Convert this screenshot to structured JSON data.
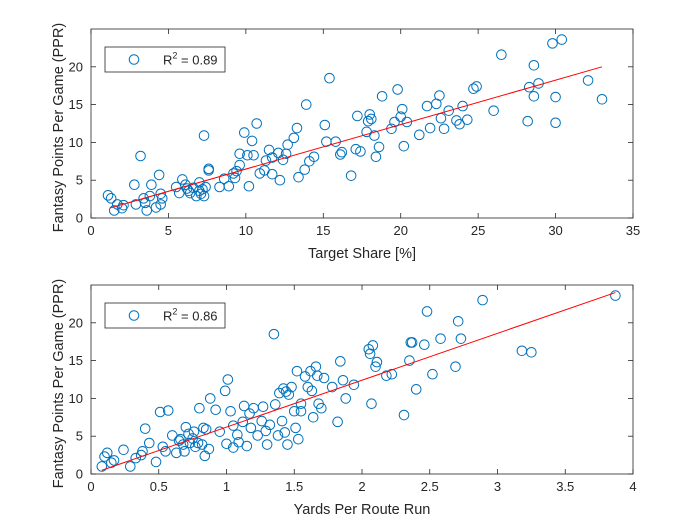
{
  "chart_data": [
    {
      "type": "scatter",
      "xlabel": "Target Share [%]",
      "ylabel": "Fantasy Points Per Game (PPR)",
      "xlim": [
        0,
        35
      ],
      "ylim": [
        0,
        25
      ],
      "xticks": [
        "0",
        "5",
        "10",
        "15",
        "20",
        "25",
        "30",
        "35"
      ],
      "yticks": [
        "0",
        "5",
        "10",
        "15",
        "20"
      ],
      "legend": {
        "placement": "top-left",
        "label_main": "R",
        "label_sup": "2",
        "label_rest": " = 0.89"
      },
      "marker_color": "#0072BD",
      "fit_color": "#FF0000",
      "fit": {
        "x": [
          1.2,
          33.0
        ],
        "y": [
          1.3,
          20.0
        ]
      },
      "points": [
        [
          1.1,
          3.0
        ],
        [
          1.3,
          2.6
        ],
        [
          1.5,
          1.0
        ],
        [
          1.7,
          1.8
        ],
        [
          2.0,
          1.3
        ],
        [
          2.1,
          1.7
        ],
        [
          2.8,
          4.4
        ],
        [
          2.9,
          1.8
        ],
        [
          3.2,
          8.2
        ],
        [
          3.4,
          2.6
        ],
        [
          3.5,
          2.0
        ],
        [
          3.6,
          1.0
        ],
        [
          3.8,
          2.9
        ],
        [
          3.9,
          4.4
        ],
        [
          4.2,
          1.4
        ],
        [
          4.4,
          5.7
        ],
        [
          4.5,
          1.8
        ],
        [
          4.5,
          3.2
        ],
        [
          4.6,
          2.6
        ],
        [
          5.5,
          4.1
        ],
        [
          5.7,
          3.3
        ],
        [
          5.9,
          5.1
        ],
        [
          6.1,
          4.4
        ],
        [
          6.2,
          3.9
        ],
        [
          6.3,
          3.6
        ],
        [
          6.4,
          3.3
        ],
        [
          6.6,
          4.0
        ],
        [
          6.8,
          2.9
        ],
        [
          7.0,
          3.6
        ],
        [
          7.0,
          4.7
        ],
        [
          7.1,
          3.2
        ],
        [
          7.2,
          3.8
        ],
        [
          7.3,
          2.9
        ],
        [
          7.3,
          10.9
        ],
        [
          7.4,
          4.1
        ],
        [
          7.6,
          6.5
        ],
        [
          7.6,
          6.3
        ],
        [
          8.3,
          4.1
        ],
        [
          8.6,
          5.2
        ],
        [
          8.9,
          4.2
        ],
        [
          9.2,
          5.9
        ],
        [
          9.3,
          5.3
        ],
        [
          9.4,
          6.2
        ],
        [
          9.6,
          8.5
        ],
        [
          9.6,
          7.0
        ],
        [
          9.9,
          11.3
        ],
        [
          10.1,
          8.3
        ],
        [
          10.2,
          4.2
        ],
        [
          10.4,
          10.2
        ],
        [
          10.5,
          8.3
        ],
        [
          10.7,
          12.5
        ],
        [
          10.9,
          5.9
        ],
        [
          11.2,
          6.3
        ],
        [
          11.3,
          7.6
        ],
        [
          11.5,
          9.0
        ],
        [
          11.7,
          8.0
        ],
        [
          11.7,
          5.8
        ],
        [
          12.1,
          8.6
        ],
        [
          12.2,
          5.0
        ],
        [
          12.4,
          7.7
        ],
        [
          12.6,
          8.5
        ],
        [
          12.7,
          9.7
        ],
        [
          13.1,
          10.6
        ],
        [
          13.3,
          11.9
        ],
        [
          13.4,
          5.4
        ],
        [
          13.8,
          6.4
        ],
        [
          13.9,
          15.0
        ],
        [
          14.1,
          7.5
        ],
        [
          14.4,
          8.1
        ],
        [
          15.1,
          12.3
        ],
        [
          15.2,
          10.1
        ],
        [
          15.4,
          18.5
        ],
        [
          15.8,
          10.1
        ],
        [
          16.1,
          8.4
        ],
        [
          16.2,
          8.7
        ],
        [
          16.8,
          5.6
        ],
        [
          17.1,
          9.1
        ],
        [
          17.2,
          13.5
        ],
        [
          17.4,
          8.8
        ],
        [
          17.8,
          11.4
        ],
        [
          17.9,
          12.8
        ],
        [
          18.0,
          13.7
        ],
        [
          18.1,
          13.1
        ],
        [
          18.3,
          10.9
        ],
        [
          18.4,
          8.1
        ],
        [
          18.6,
          9.4
        ],
        [
          18.8,
          16.1
        ],
        [
          19.4,
          11.8
        ],
        [
          19.6,
          12.7
        ],
        [
          19.8,
          17.0
        ],
        [
          20.0,
          13.4
        ],
        [
          20.1,
          14.4
        ],
        [
          20.2,
          9.5
        ],
        [
          20.4,
          12.7
        ],
        [
          21.2,
          11.0
        ],
        [
          21.7,
          14.8
        ],
        [
          21.9,
          11.9
        ],
        [
          22.3,
          15.1
        ],
        [
          22.5,
          16.2
        ],
        [
          22.6,
          13.2
        ],
        [
          22.8,
          11.8
        ],
        [
          23.1,
          14.2
        ],
        [
          23.6,
          12.9
        ],
        [
          23.8,
          12.4
        ],
        [
          24.0,
          14.8
        ],
        [
          24.3,
          13.0
        ],
        [
          24.7,
          17.1
        ],
        [
          24.9,
          17.4
        ],
        [
          26.0,
          14.2
        ],
        [
          26.5,
          21.6
        ],
        [
          28.2,
          12.8
        ],
        [
          28.3,
          17.3
        ],
        [
          28.6,
          16.1
        ],
        [
          28.6,
          20.2
        ],
        [
          28.9,
          17.8
        ],
        [
          29.8,
          23.1
        ],
        [
          30.0,
          12.6
        ],
        [
          30.0,
          16.0
        ],
        [
          30.4,
          23.6
        ],
        [
          32.1,
          18.2
        ],
        [
          33.0,
          15.7
        ]
      ]
    },
    {
      "type": "scatter",
      "xlabel": "Yards Per Route Run",
      "ylabel": "Fantasy Points Per Game (PPR)",
      "xlim": [
        0,
        4
      ],
      "ylim": [
        0,
        25
      ],
      "xticks": [
        "0",
        "0.5",
        "1",
        "1.5",
        "2",
        "2.5",
        "3",
        "3.5",
        "4"
      ],
      "yticks": [
        "0",
        "5",
        "10",
        "15",
        "20"
      ],
      "legend": {
        "placement": "top-left",
        "label_main": "R",
        "label_sup": "2",
        "label_rest": " = 0.86"
      },
      "marker_color": "#0072BD",
      "fit_color": "#FF0000",
      "fit": {
        "x": [
          0.08,
          3.87
        ],
        "y": [
          0.5,
          24.0
        ]
      },
      "points": [
        [
          0.08,
          1.0
        ],
        [
          0.1,
          2.3
        ],
        [
          0.12,
          2.8
        ],
        [
          0.15,
          1.5
        ],
        [
          0.17,
          1.8
        ],
        [
          0.24,
          3.2
        ],
        [
          0.29,
          1.0
        ],
        [
          0.33,
          2.1
        ],
        [
          0.37,
          2.5
        ],
        [
          0.38,
          3.0
        ],
        [
          0.4,
          6.0
        ],
        [
          0.43,
          4.1
        ],
        [
          0.48,
          1.6
        ],
        [
          0.51,
          8.2
        ],
        [
          0.53,
          3.6
        ],
        [
          0.55,
          3.0
        ],
        [
          0.57,
          8.4
        ],
        [
          0.6,
          5.1
        ],
        [
          0.63,
          2.8
        ],
        [
          0.65,
          4.4
        ],
        [
          0.66,
          4.6
        ],
        [
          0.68,
          3.9
        ],
        [
          0.69,
          3.0
        ],
        [
          0.7,
          6.2
        ],
        [
          0.72,
          5.3
        ],
        [
          0.73,
          4.1
        ],
        [
          0.75,
          4.7
        ],
        [
          0.76,
          5.6
        ],
        [
          0.77,
          3.6
        ],
        [
          0.79,
          4.1
        ],
        [
          0.8,
          8.7
        ],
        [
          0.82,
          3.9
        ],
        [
          0.83,
          6.1
        ],
        [
          0.84,
          2.4
        ],
        [
          0.85,
          5.9
        ],
        [
          0.87,
          3.3
        ],
        [
          0.88,
          10.0
        ],
        [
          0.92,
          8.5
        ],
        [
          0.95,
          5.6
        ],
        [
          0.99,
          11.0
        ],
        [
          1.0,
          4.0
        ],
        [
          1.01,
          12.5
        ],
        [
          1.03,
          8.3
        ],
        [
          1.05,
          6.4
        ],
        [
          1.05,
          3.5
        ],
        [
          1.08,
          5.2
        ],
        [
          1.09,
          4.2
        ],
        [
          1.12,
          6.9
        ],
        [
          1.13,
          9.0
        ],
        [
          1.15,
          3.7
        ],
        [
          1.17,
          8.0
        ],
        [
          1.18,
          6.1
        ],
        [
          1.2,
          8.7
        ],
        [
          1.23,
          5.1
        ],
        [
          1.26,
          7.0
        ],
        [
          1.27,
          8.9
        ],
        [
          1.29,
          5.7
        ],
        [
          1.3,
          3.9
        ],
        [
          1.32,
          6.5
        ],
        [
          1.35,
          18.5
        ],
        [
          1.36,
          9.2
        ],
        [
          1.38,
          5.1
        ],
        [
          1.39,
          10.7
        ],
        [
          1.41,
          7.0
        ],
        [
          1.42,
          11.3
        ],
        [
          1.43,
          5.5
        ],
        [
          1.44,
          10.9
        ],
        [
          1.45,
          3.9
        ],
        [
          1.46,
          10.5
        ],
        [
          1.48,
          11.5
        ],
        [
          1.5,
          8.3
        ],
        [
          1.51,
          6.1
        ],
        [
          1.52,
          13.6
        ],
        [
          1.53,
          4.6
        ],
        [
          1.55,
          9.3
        ],
        [
          1.55,
          8.3
        ],
        [
          1.58,
          12.9
        ],
        [
          1.6,
          11.5
        ],
        [
          1.62,
          13.6
        ],
        [
          1.63,
          11.0
        ],
        [
          1.64,
          7.5
        ],
        [
          1.66,
          14.2
        ],
        [
          1.67,
          13.0
        ],
        [
          1.68,
          9.3
        ],
        [
          1.7,
          8.7
        ],
        [
          1.72,
          12.7
        ],
        [
          1.78,
          11.5
        ],
        [
          1.82,
          6.9
        ],
        [
          1.84,
          14.9
        ],
        [
          1.86,
          12.4
        ],
        [
          1.88,
          10.0
        ],
        [
          1.94,
          11.8
        ],
        [
          2.05,
          16.5
        ],
        [
          2.06,
          15.9
        ],
        [
          2.07,
          9.3
        ],
        [
          2.08,
          17.0
        ],
        [
          2.1,
          14.2
        ],
        [
          2.11,
          14.8
        ],
        [
          2.18,
          13.0
        ],
        [
          2.22,
          13.2
        ],
        [
          2.31,
          7.8
        ],
        [
          2.35,
          15.0
        ],
        [
          2.36,
          17.4
        ],
        [
          2.37,
          17.4
        ],
        [
          2.4,
          11.2
        ],
        [
          2.46,
          17.1
        ],
        [
          2.48,
          21.5
        ],
        [
          2.52,
          13.2
        ],
        [
          2.58,
          17.9
        ],
        [
          2.69,
          14.2
        ],
        [
          2.71,
          20.2
        ],
        [
          2.73,
          17.9
        ],
        [
          2.89,
          23.0
        ],
        [
          3.18,
          16.3
        ],
        [
          3.25,
          16.1
        ],
        [
          3.87,
          23.6
        ]
      ]
    }
  ]
}
